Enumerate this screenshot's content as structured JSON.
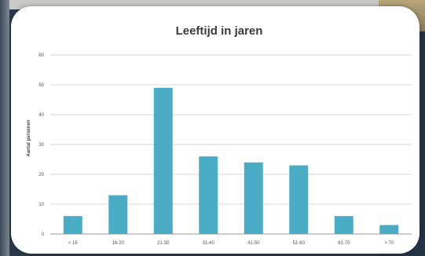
{
  "chart_data": {
    "type": "bar",
    "title": "Leeftijd in jaren",
    "ylabel": "Aantal personen",
    "xlabel": "",
    "categories": [
      "< 16",
      "16-20",
      "21-30",
      "31-40",
      "41-50",
      "51-60",
      "61-70",
      "> 70"
    ],
    "values": [
      6,
      13,
      49,
      26,
      24,
      23,
      6,
      3
    ],
    "ylim": [
      0,
      60
    ],
    "yticks": [
      "0",
      "10",
      "20",
      "30",
      "40",
      "50",
      "60"
    ],
    "grid": true,
    "legend": "none",
    "colors": {
      "bar": "#4bacc6"
    }
  }
}
